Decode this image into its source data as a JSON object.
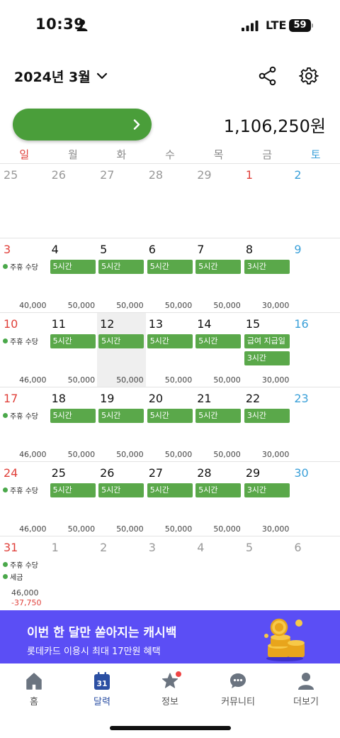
{
  "status_bar": {
    "time": "10:39",
    "network": "LTE",
    "battery": "59"
  },
  "header": {
    "month_title": "2024년 3월",
    "total_amount": "1,106,250원"
  },
  "weekdays": [
    "일",
    "월",
    "화",
    "수",
    "목",
    "금",
    "토"
  ],
  "weeks": [
    {
      "days": [
        {
          "num": "25",
          "style": "muted"
        },
        {
          "num": "26",
          "style": "muted"
        },
        {
          "num": "27",
          "style": "muted"
        },
        {
          "num": "28",
          "style": "muted"
        },
        {
          "num": "29",
          "style": "muted"
        },
        {
          "num": "1",
          "style": "sun"
        },
        {
          "num": "2",
          "style": "sat"
        }
      ]
    },
    {
      "days": [
        {
          "num": "3",
          "style": "sun",
          "labels": [
            "주휴 수당"
          ],
          "amount": "40,000"
        },
        {
          "num": "4",
          "events": [
            "5시간"
          ],
          "amount": "50,000"
        },
        {
          "num": "5",
          "events": [
            "5시간"
          ],
          "amount": "50,000"
        },
        {
          "num": "6",
          "events": [
            "5시간"
          ],
          "amount": "50,000"
        },
        {
          "num": "7",
          "events": [
            "5시간"
          ],
          "amount": "50,000"
        },
        {
          "num": "8",
          "events": [
            "3시간"
          ],
          "amount": "30,000"
        },
        {
          "num": "9",
          "style": "sat"
        }
      ]
    },
    {
      "days": [
        {
          "num": "10",
          "style": "sun",
          "labels": [
            "주휴 수당"
          ],
          "amount": "46,000"
        },
        {
          "num": "11",
          "events": [
            "5시간"
          ],
          "amount": "50,000"
        },
        {
          "num": "12",
          "events": [
            "5시간"
          ],
          "amount": "50,000",
          "highlight": true
        },
        {
          "num": "13",
          "events": [
            "5시간"
          ],
          "amount": "50,000"
        },
        {
          "num": "14",
          "events": [
            "5시간"
          ],
          "amount": "50,000"
        },
        {
          "num": "15",
          "events": [
            "급여 지급일",
            "3시간"
          ],
          "amount": "30,000"
        },
        {
          "num": "16",
          "style": "sat"
        }
      ]
    },
    {
      "days": [
        {
          "num": "17",
          "style": "sun",
          "labels": [
            "주휴 수당"
          ],
          "amount": "46,000"
        },
        {
          "num": "18",
          "events": [
            "5시간"
          ],
          "amount": "50,000"
        },
        {
          "num": "19",
          "events": [
            "5시간"
          ],
          "amount": "50,000"
        },
        {
          "num": "20",
          "events": [
            "5시간"
          ],
          "amount": "50,000"
        },
        {
          "num": "21",
          "events": [
            "5시간"
          ],
          "amount": "50,000"
        },
        {
          "num": "22",
          "events": [
            "3시간"
          ],
          "amount": "30,000"
        },
        {
          "num": "23",
          "style": "sat"
        }
      ]
    },
    {
      "days": [
        {
          "num": "24",
          "style": "sun",
          "labels": [
            "주휴 수당"
          ],
          "amount": "46,000"
        },
        {
          "num": "25",
          "events": [
            "5시간"
          ],
          "amount": "50,000"
        },
        {
          "num": "26",
          "events": [
            "5시간"
          ],
          "amount": "50,000"
        },
        {
          "num": "27",
          "events": [
            "5시간"
          ],
          "amount": "50,000"
        },
        {
          "num": "28",
          "events": [
            "5시간"
          ],
          "amount": "50,000"
        },
        {
          "num": "29",
          "events": [
            "3시간"
          ],
          "amount": "30,000"
        },
        {
          "num": "30",
          "style": "sat"
        }
      ]
    },
    {
      "days": [
        {
          "num": "31",
          "style": "sun",
          "labels": [
            "주휴 수당",
            "세금"
          ],
          "amount": "46,000",
          "amount_neg": "-37,750"
        },
        {
          "num": "1",
          "style": "muted"
        },
        {
          "num": "2",
          "style": "muted"
        },
        {
          "num": "3",
          "style": "muted"
        },
        {
          "num": "4",
          "style": "muted"
        },
        {
          "num": "5",
          "style": "muted"
        },
        {
          "num": "6",
          "style": "muted"
        }
      ]
    }
  ],
  "banner": {
    "title": "이번 한 달만 쏟아지는 캐시백",
    "subtitle": "롯데카드 이용시 최대 17만원 혜택"
  },
  "bottom_nav": [
    {
      "label": "홈",
      "icon": "home-icon"
    },
    {
      "label": "달력",
      "icon": "calendar-icon",
      "active": true,
      "badge_text": "31"
    },
    {
      "label": "정보",
      "icon": "star-icon",
      "dot": true
    },
    {
      "label": "커뮤니티",
      "icon": "chat-icon"
    },
    {
      "label": "더보기",
      "icon": "person-icon"
    }
  ],
  "colors": {
    "accent_green": "#4a9e3a",
    "event_green": "#5aa84a",
    "sunday_red": "#e0403a",
    "saturday_blue": "#3aa0d9",
    "banner_purple": "#5b4ef5",
    "nav_active": "#2b4fa3"
  }
}
